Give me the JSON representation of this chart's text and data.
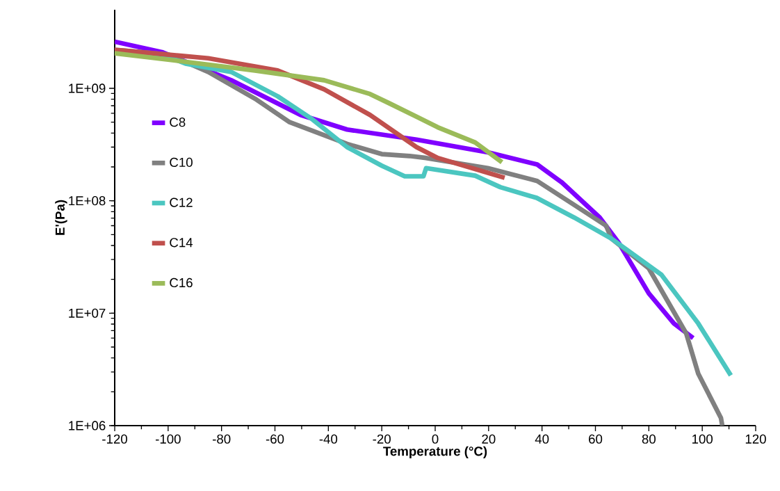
{
  "chart_data": {
    "type": "line",
    "xlabel": "Temperature (°C)",
    "ylabel": "E'(Pa)",
    "log": "y",
    "xlim": [
      -120,
      120
    ],
    "ylim": [
      1000000,
      5000000000
    ],
    "xticks": [
      -120,
      -100,
      -80,
      -60,
      -40,
      -20,
      0,
      20,
      40,
      60,
      80,
      100,
      120
    ],
    "yticks": [
      {
        "value": 1000000,
        "label": "1E+06"
      },
      {
        "value": 10000000,
        "label": "1E+07"
      },
      {
        "value": 100000000,
        "label": "1E+08"
      },
      {
        "value": 1000000000,
        "label": "1E+09"
      }
    ],
    "grid": false,
    "legend": "left",
    "marker": "none",
    "line_style": "solid",
    "series": [
      {
        "name": "C8",
        "color": "#7f00ff",
        "x": [
          -120,
          -102.3,
          -76.4,
          -50.4,
          -33,
          -7,
          19.7,
          38.2,
          47.5,
          61.6,
          68.8,
          80,
          89.4,
          96.6
        ],
        "values": [
          2600000000,
          2100000000,
          1180000000,
          580000000,
          430000000,
          350000000,
          270000000,
          210000000,
          145000000,
          71000000,
          42000000,
          15000000,
          8100000,
          6000000
        ]
      },
      {
        "name": "C10",
        "color": "#808080",
        "x": [
          -120,
          -100,
          -85,
          -67.5,
          -54.5,
          -33,
          -20,
          -9.6,
          -3.4,
          19.7,
          38.2,
          52,
          64,
          66,
          80,
          94,
          98.5,
          107,
          107.5
        ],
        "values": [
          2200000000,
          2000000000,
          1400000000,
          810000000,
          500000000,
          320000000,
          260000000,
          250000000,
          240000000,
          195000000,
          150000000,
          92000000,
          60000000,
          46000000,
          25000000,
          6600000,
          2900000,
          1170000,
          1000000
        ]
      },
      {
        "name": "C12",
        "color": "#4bc6c0",
        "x": [
          -120,
          -100,
          -93.5,
          -76.4,
          -59,
          -46,
          -33,
          -20,
          -11.4,
          -4.4,
          -3.4,
          15,
          24.4,
          38,
          52,
          66,
          84.7,
          98.5,
          110.7
        ],
        "values": [
          2100000000,
          1900000000,
          1660000000,
          1400000000,
          850000000,
          530000000,
          300000000,
          205000000,
          165000000,
          165000000,
          195000000,
          167000000,
          132000000,
          106000000,
          71000000,
          46000000,
          22000000,
          8100000,
          2800000
        ]
      },
      {
        "name": "C14",
        "color": "#c0504d",
        "x": [
          -120,
          -85,
          -59,
          -41.6,
          -24.4,
          -7,
          1,
          26
        ],
        "values": [
          2200000000,
          1850000000,
          1440000000,
          980000000,
          580000000,
          300000000,
          240000000,
          160000000
        ]
      },
      {
        "name": "C16",
        "color": "#9bbb59",
        "x": [
          -120,
          -100,
          -67.5,
          -41.6,
          -24.4,
          -17.4,
          -7,
          1,
          15,
          25
        ],
        "values": [
          2050000000,
          1800000000,
          1440000000,
          1180000000,
          890000000,
          740000000,
          560000000,
          450000000,
          330000000,
          220000000
        ]
      }
    ]
  }
}
